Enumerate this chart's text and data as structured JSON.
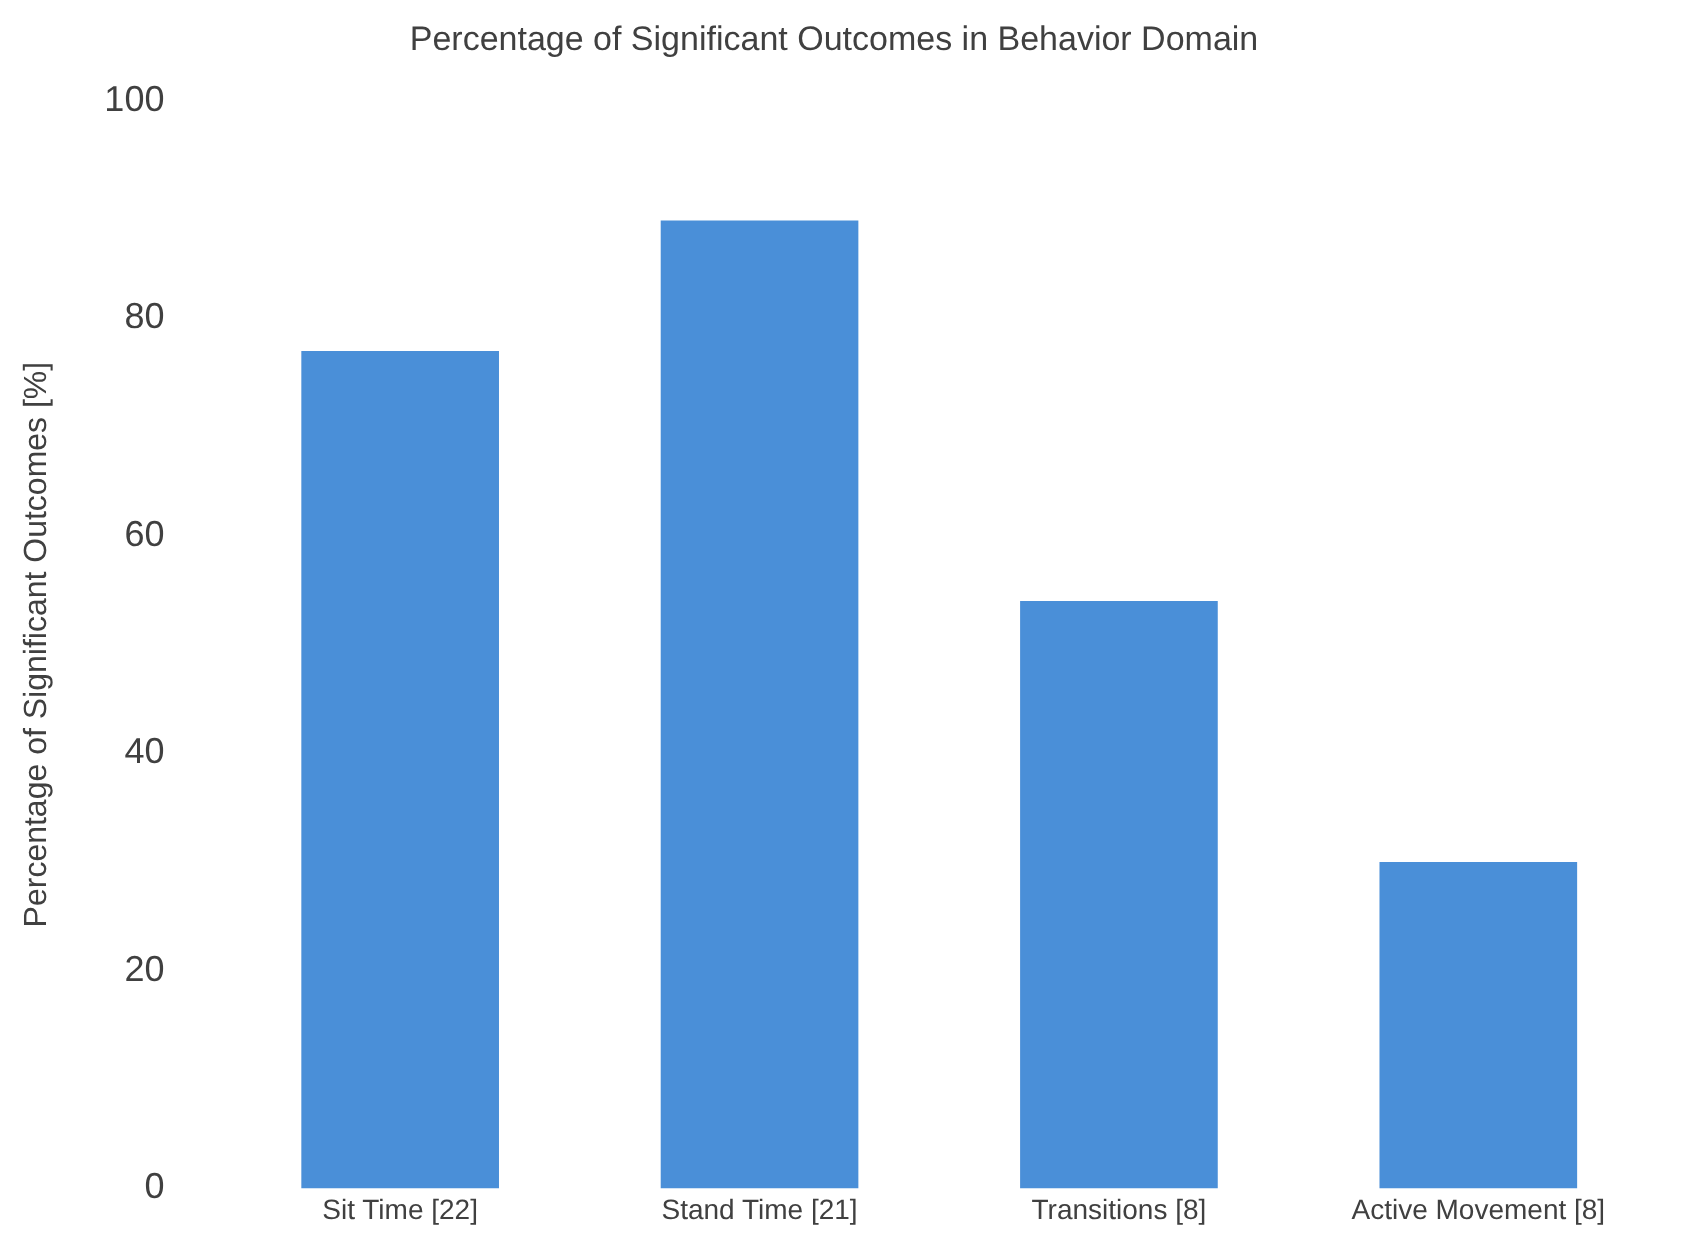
{
  "chart_data": {
    "type": "bar",
    "title": "Percentage of Significant Outcomes in Behavior Domain",
    "ylabel": "Percentage of Significant Outcomes [%]",
    "categories": [
      "Sit Time [22]",
      "Stand Time [21]",
      "Transitions [8]",
      "Active Movement [8]"
    ],
    "values": [
      77,
      89,
      54,
      30
    ],
    "color": "#4a8fd8",
    "ylim": [
      0,
      100
    ],
    "yticks": [
      0,
      20,
      40,
      60,
      80,
      100
    ],
    "grid": false
  }
}
